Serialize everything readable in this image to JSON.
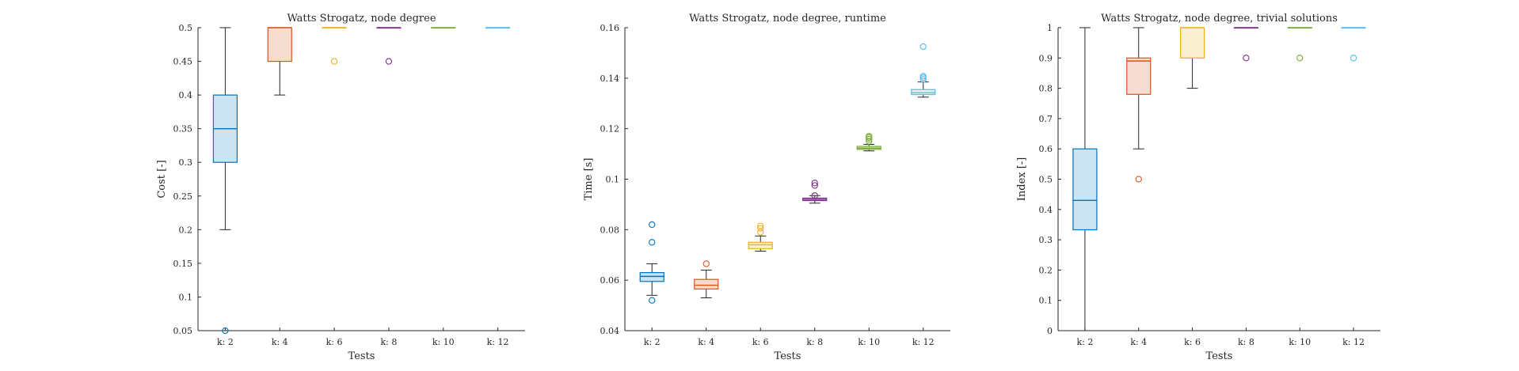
{
  "chart_data": [
    {
      "type": "box",
      "title": "Watts Strogatz, node degree",
      "xlabel": "Tests",
      "ylabel": "Cost [-]",
      "categories": [
        "k: 2",
        "k: 4",
        "k: 6",
        "k: 8",
        "k: 10",
        "k: 12"
      ],
      "ylim": [
        0.05,
        0.5
      ],
      "yticks": [
        0.05,
        0.1,
        0.15,
        0.2,
        0.25,
        0.3,
        0.35,
        0.4,
        0.45,
        0.5
      ],
      "ytick_labels": [
        "0.05",
        "0.1",
        "0.15",
        "0.2",
        "0.25",
        "0.3",
        "0.35",
        "0.4",
        "0.45",
        "0.5"
      ],
      "series": [
        {
          "category": "k: 2",
          "color": "#0072BD",
          "q1": 0.3,
          "median": 0.35,
          "q3": 0.4,
          "whisker_low": 0.2,
          "whisker_high": 0.5,
          "outliers": [
            0.05
          ]
        },
        {
          "category": "k: 4",
          "color": "#D95319",
          "q1": 0.45,
          "median": 0.5,
          "q3": 0.5,
          "whisker_low": 0.4,
          "whisker_high": 0.5,
          "outliers": []
        },
        {
          "category": "k: 6",
          "color": "#EDB120",
          "q1": 0.5,
          "median": 0.5,
          "q3": 0.5,
          "whisker_low": 0.5,
          "whisker_high": 0.5,
          "outliers": [
            0.45
          ]
        },
        {
          "category": "k: 8",
          "color": "#7E2F8E",
          "q1": 0.5,
          "median": 0.5,
          "q3": 0.5,
          "whisker_low": 0.5,
          "whisker_high": 0.5,
          "outliers": [
            0.45
          ]
        },
        {
          "category": "k: 10",
          "color": "#77AC30",
          "q1": 0.5,
          "median": 0.5,
          "q3": 0.5,
          "whisker_low": 0.5,
          "whisker_high": 0.5,
          "outliers": []
        },
        {
          "category": "k: 12",
          "color": "#4DBEEE",
          "q1": 0.5,
          "median": 0.5,
          "q3": 0.5,
          "whisker_low": 0.5,
          "whisker_high": 0.5,
          "outliers": []
        }
      ]
    },
    {
      "type": "box",
      "title": "Watts Strogatz, node degree, runtime",
      "xlabel": "Tests",
      "ylabel": "Time [s]",
      "categories": [
        "k: 2",
        "k: 4",
        "k: 6",
        "k: 8",
        "k: 10",
        "k: 12"
      ],
      "ylim": [
        0.04,
        0.16
      ],
      "yticks": [
        0.04,
        0.06,
        0.08,
        0.1,
        0.12,
        0.14,
        0.16
      ],
      "ytick_labels": [
        "0.04",
        "0.06",
        "0.08",
        "0.1",
        "0.12",
        "0.14",
        "0.16"
      ],
      "series": [
        {
          "category": "k: 2",
          "color": "#0072BD",
          "q1": 0.0595,
          "median": 0.0615,
          "q3": 0.063,
          "whisker_low": 0.054,
          "whisker_high": 0.0665,
          "outliers": [
            0.052,
            0.075,
            0.082
          ]
        },
        {
          "category": "k: 4",
          "color": "#D95319",
          "q1": 0.0565,
          "median": 0.058,
          "q3": 0.0603,
          "whisker_low": 0.053,
          "whisker_high": 0.064,
          "outliers": [
            0.0665
          ]
        },
        {
          "category": "k: 6",
          "color": "#EDB120",
          "q1": 0.0725,
          "median": 0.074,
          "q3": 0.075,
          "whisker_low": 0.0715,
          "whisker_high": 0.0775,
          "outliers": [
            0.079,
            0.0805,
            0.0815
          ]
        },
        {
          "category": "k: 8",
          "color": "#7E2F8E",
          "q1": 0.0915,
          "median": 0.092,
          "q3": 0.0925,
          "whisker_low": 0.0905,
          "whisker_high": 0.0935,
          "outliers": [
            0.0935,
            0.0975,
            0.0985
          ]
        },
        {
          "category": "k: 10",
          "color": "#77AC30",
          "q1": 0.1118,
          "median": 0.1123,
          "q3": 0.113,
          "whisker_low": 0.1112,
          "whisker_high": 0.1138,
          "outliers": [
            0.115,
            0.1158,
            0.1165,
            0.117
          ]
        },
        {
          "category": "k: 12",
          "color": "#4DBEEE",
          "q1": 0.1335,
          "median": 0.1342,
          "q3": 0.1355,
          "whisker_low": 0.1325,
          "whisker_high": 0.1385,
          "outliers": [
            0.1395,
            0.1402,
            0.1408,
            0.1525
          ]
        }
      ]
    },
    {
      "type": "box",
      "title": "Watts Strogatz, node degree, trivial solutions",
      "xlabel": "Tests",
      "ylabel": "Index [-]",
      "categories": [
        "k: 2",
        "k: 4",
        "k: 6",
        "k: 8",
        "k: 10",
        "k: 12"
      ],
      "ylim": [
        0,
        1
      ],
      "yticks": [
        0,
        0.1,
        0.2,
        0.3,
        0.4,
        0.5,
        0.6,
        0.7,
        0.8,
        0.9,
        1
      ],
      "ytick_labels": [
        "0",
        "0.1",
        "0.2",
        "0.3",
        "0.4",
        "0.5",
        "0.6",
        "0.7",
        "0.8",
        "0.9",
        "1"
      ],
      "series": [
        {
          "category": "k: 2",
          "color": "#0072BD",
          "q1": 0.333,
          "median": 0.43,
          "q3": 0.6,
          "whisker_low": 0.0,
          "whisker_high": 1.0,
          "outliers": []
        },
        {
          "category": "k: 4",
          "color": "#D95319",
          "q1": 0.78,
          "median": 0.89,
          "q3": 0.9,
          "whisker_low": 0.6,
          "whisker_high": 1.0,
          "outliers": [
            0.5
          ]
        },
        {
          "category": "k: 6",
          "color": "#EDB120",
          "q1": 0.9,
          "median": 1.0,
          "q3": 1.0,
          "whisker_low": 0.8,
          "whisker_high": 1.0,
          "outliers": []
        },
        {
          "category": "k: 8",
          "color": "#7E2F8E",
          "q1": 1.0,
          "median": 1.0,
          "q3": 1.0,
          "whisker_low": 1.0,
          "whisker_high": 1.0,
          "outliers": [
            0.9
          ]
        },
        {
          "category": "k: 10",
          "color": "#77AC30",
          "q1": 1.0,
          "median": 1.0,
          "q3": 1.0,
          "whisker_low": 1.0,
          "whisker_high": 1.0,
          "outliers": [
            0.9
          ]
        },
        {
          "category": "k: 12",
          "color": "#4DBEEE",
          "q1": 1.0,
          "median": 1.0,
          "q3": 1.0,
          "whisker_low": 1.0,
          "whisker_high": 1.0,
          "outliers": [
            0.9
          ]
        }
      ]
    }
  ]
}
